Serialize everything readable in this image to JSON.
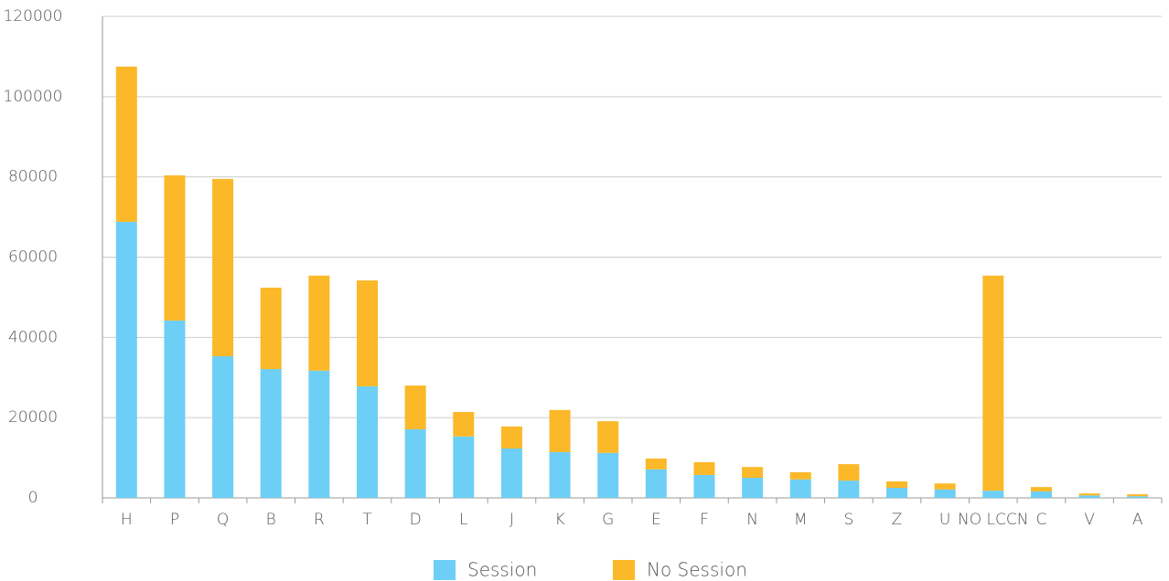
{
  "chart_data": {
    "type": "stacked_bar",
    "categories": [
      "H",
      "P",
      "Q",
      "B",
      "R",
      "T",
      "D",
      "L",
      "J",
      "K",
      "G",
      "E",
      "F",
      "N",
      "M",
      "S",
      "Z",
      "U",
      "NO LCCN",
      "C",
      "V",
      "A"
    ],
    "series": [
      {
        "name": "Session",
        "color": "#6dcff6",
        "values": [
          68800,
          44200,
          35300,
          32100,
          31700,
          27800,
          17100,
          15300,
          12300,
          11400,
          11200,
          7100,
          5700,
          5000,
          4600,
          4300,
          2500,
          2100,
          1800,
          1600,
          600,
          400
        ]
      },
      {
        "name": "No Session",
        "color": "#fbb829",
        "values": [
          38700,
          36200,
          44200,
          20300,
          23700,
          26400,
          10900,
          6100,
          5500,
          10500,
          7900,
          2700,
          3200,
          2700,
          1800,
          4100,
          1600,
          1500,
          53600,
          1100,
          500,
          500
        ]
      }
    ],
    "ylim": [
      0,
      120000
    ],
    "yticks": [
      0,
      20000,
      40000,
      60000,
      80000,
      100000,
      120000
    ],
    "grid": true
  }
}
